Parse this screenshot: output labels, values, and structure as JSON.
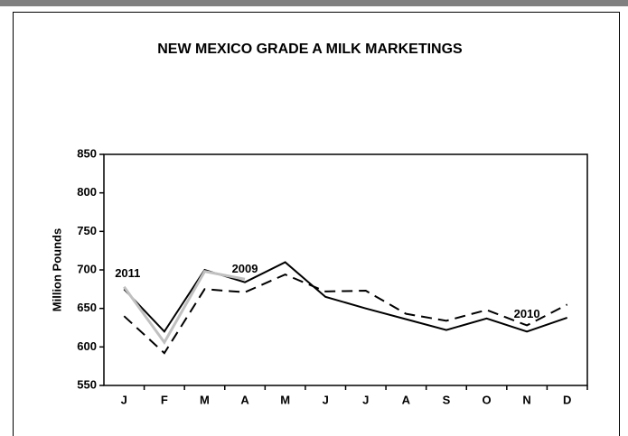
{
  "chart_data": {
    "type": "line",
    "title": "NEW MEXICO GRADE A MILK MARKETINGS",
    "y_label": "Million Pounds",
    "categories": [
      "J",
      "F",
      "M",
      "A",
      "M",
      "J",
      "J",
      "A",
      "S",
      "O",
      "N",
      "D"
    ],
    "series": [
      {
        "name": "2009",
        "color": "#000000",
        "dash": "solid",
        "values": [
          675,
          620,
          700,
          684,
          710,
          665,
          650,
          636,
          622,
          637,
          620,
          638
        ]
      },
      {
        "name": "2010",
        "color": "#000000",
        "dash": "dashed",
        "values": [
          640,
          592,
          675,
          671,
          694,
          672,
          673,
          643,
          634,
          648,
          628,
          655
        ]
      },
      {
        "name": "2011",
        "color": "#c0c0c0",
        "dash": "solid",
        "values": [
          678,
          606,
          698,
          688,
          null,
          null,
          null,
          null,
          null,
          null,
          null,
          null
        ]
      }
    ],
    "ylim": [
      550,
      850
    ],
    "yticks": [
      550,
      600,
      650,
      700,
      750,
      800,
      850
    ],
    "grid": false
  }
}
